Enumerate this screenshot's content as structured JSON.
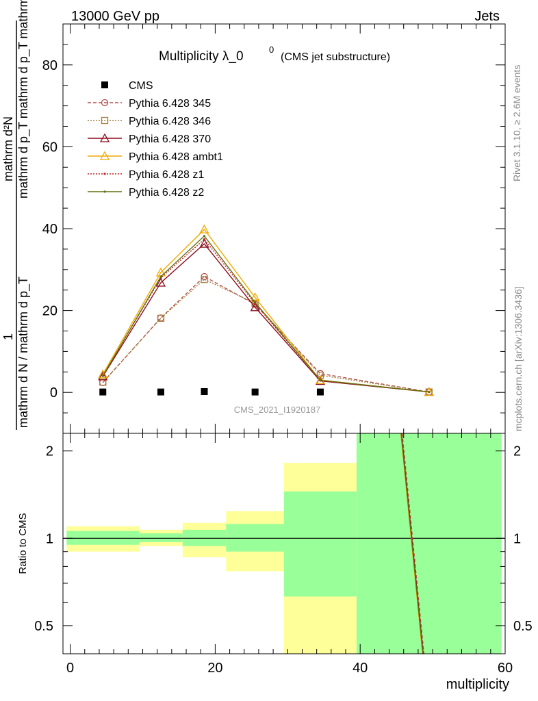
{
  "header": {
    "left": "13000 GeV pp",
    "right": "Jets"
  },
  "side": {
    "rivet": "Rivet 3.1.10, ≥ 2.6M events",
    "mcplots": "mcplots.cern.ch [arXiv:1306.3436]"
  },
  "chart_data": [
    {
      "type": "line",
      "title_main": "Multiplicity λ_0",
      "title_sup": "0",
      "title_paren": "(CMS jet substructure)",
      "watermark": "CMS_2021_I1920187",
      "ylabel_num": "mathrm d²N",
      "ylabel_den": "mathrm d p_T mathrm d p_T mathrm d lambda",
      "ylabel_one": "1",
      "ylabel_norm": "mathrm d N / mathrm d p_T",
      "xlim": [
        -1,
        60
      ],
      "ylim": [
        -10,
        90
      ],
      "yticks": [
        0,
        20,
        40,
        60,
        80
      ],
      "legend_position": "top-left",
      "x": [
        4.5,
        12.5,
        18.5,
        25.5,
        34.5,
        49.5
      ],
      "series": [
        {
          "name": "CMS",
          "color": "#000000",
          "marker": "square",
          "values": [
            0.1,
            0.1,
            0.2,
            0.1,
            0.1,
            null
          ]
        },
        {
          "name": "Pythia 6.428 345",
          "color": "#b84c4c",
          "dash": "5,3",
          "marker": "circle",
          "values": [
            2.4,
            18.2,
            28.3,
            21.5,
            4.6,
            0.1
          ]
        },
        {
          "name": "Pythia 6.428 346",
          "color": "#a08040",
          "dash": "2,2",
          "marker": "square-open",
          "values": [
            2.5,
            18.1,
            27.6,
            21.8,
            4.2,
            0.1
          ]
        },
        {
          "name": "Pythia 6.428 370",
          "color": "#8b0a1a",
          "dash": "",
          "marker": "triangle-open",
          "values": [
            3.9,
            26.8,
            36.3,
            20.8,
            2.8,
            0.1
          ]
        },
        {
          "name": "Pythia 6.428 ambt1",
          "color": "#f0a800",
          "dash": "",
          "marker": "triangle-open",
          "values": [
            4.4,
            29.3,
            39.8,
            23.2,
            3.0,
            0.1
          ]
        },
        {
          "name": "Pythia 6.428 z1",
          "color": "#c02020",
          "dash": "2,2",
          "marker": "dot",
          "values": [
            4.1,
            28.0,
            37.4,
            21.7,
            2.9,
            0.1
          ]
        },
        {
          "name": "Pythia 6.428 z2",
          "color": "#607010",
          "dash": "",
          "marker": "dot",
          "values": [
            4.0,
            28.3,
            38.2,
            22.0,
            3.0,
            0.1
          ]
        }
      ]
    },
    {
      "type": "bar",
      "ylabel": "Ratio to CMS",
      "xlabel": "multiplicity",
      "xlim": [
        -1,
        60
      ],
      "ylim": [
        0.4,
        2.3
      ],
      "yscale": "log",
      "xticks": [
        0,
        20,
        40,
        60
      ],
      "yticks": [
        0.5,
        1,
        2
      ],
      "bins": [
        {
          "lo": -0.5,
          "hi": 9.5,
          "stat": [
            0.95,
            1.06
          ],
          "total": [
            0.9,
            1.1
          ]
        },
        {
          "lo": 9.5,
          "hi": 15.5,
          "stat": [
            0.97,
            1.04
          ],
          "total": [
            0.94,
            1.07
          ]
        },
        {
          "lo": 15.5,
          "hi": 21.5,
          "stat": [
            0.94,
            1.07
          ],
          "total": [
            0.86,
            1.13
          ]
        },
        {
          "lo": 21.5,
          "hi": 29.5,
          "stat": [
            0.9,
            1.12
          ],
          "total": [
            0.77,
            1.24
          ]
        },
        {
          "lo": 29.5,
          "hi": 39.5,
          "stat": [
            0.63,
            1.45
          ],
          "total": [
            0.3,
            1.82
          ]
        },
        {
          "lo": 39.5,
          "hi": 59.5,
          "stat": [
            0.3,
            3.0
          ],
          "total": [
            0.3,
            3.0
          ]
        }
      ],
      "stat_color": "#99ff99",
      "total_color": "#ffff99",
      "ratio_lines": [
        {
          "color": "#b84c4c",
          "dash": "5,3",
          "points": [
            [
              45.8,
              2.3
            ],
            [
              48.8,
              0.4
            ]
          ]
        },
        {
          "color": "#8b0a1a",
          "dash": "",
          "points": [
            [
              45.7,
              2.3
            ],
            [
              48.7,
              0.4
            ]
          ]
        },
        {
          "color": "#f0a800",
          "dash": "",
          "points": [
            [
              45.6,
              2.3
            ],
            [
              48.6,
              0.4
            ]
          ]
        },
        {
          "color": "#607010",
          "dash": "",
          "points": [
            [
              45.65,
              2.3
            ],
            [
              48.65,
              0.4
            ]
          ]
        }
      ]
    }
  ]
}
